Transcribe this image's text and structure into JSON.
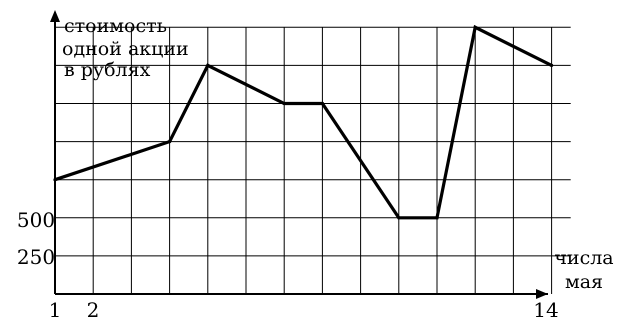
{
  "chart_data": {
    "type": "line",
    "ylabel_lines": [
      "стоимость",
      "одной акции",
      "в рублях"
    ],
    "xlabel_lines": [
      "числа",
      "мая"
    ],
    "x_tick_labels": [
      "1",
      "2",
      "14"
    ],
    "y_tick_labels": [
      "250",
      "500"
    ],
    "xlim": [
      1,
      14
    ],
    "ylim": [
      0,
      1750
    ],
    "grid": true,
    "x": [
      1,
      4,
      5,
      7,
      8,
      10,
      11,
      12,
      14
    ],
    "y": [
      750,
      1000,
      1500,
      1250,
      1250,
      500,
      500,
      1750,
      1500
    ]
  }
}
